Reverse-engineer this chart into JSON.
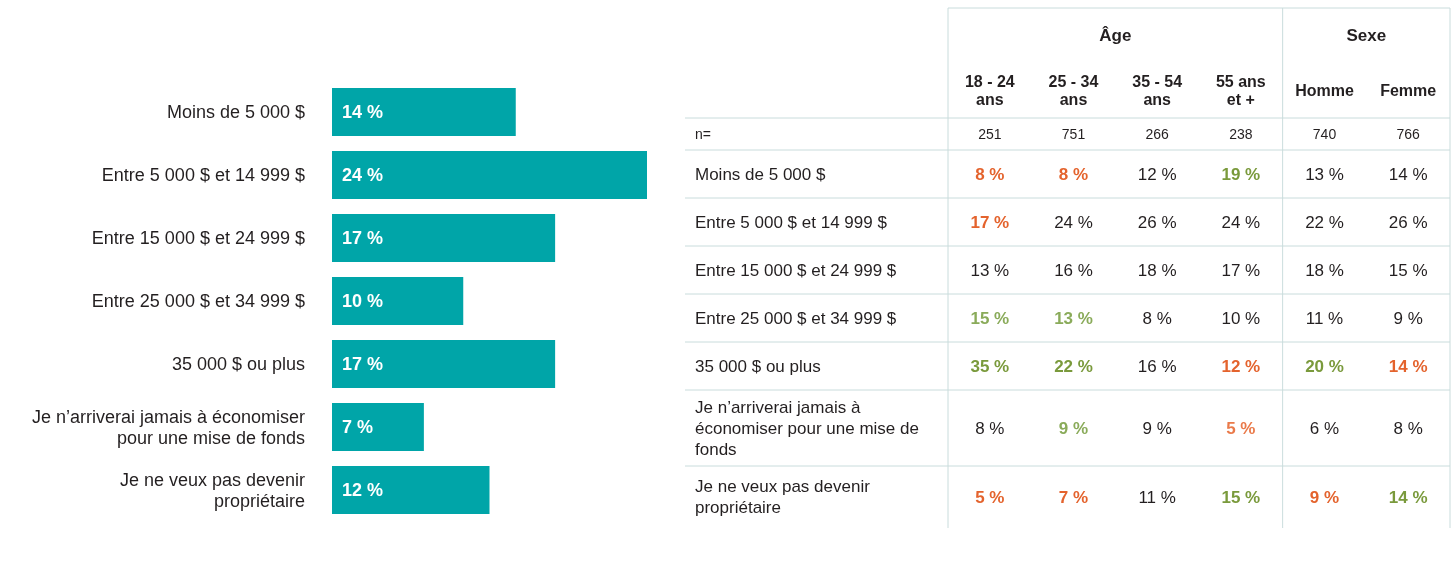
{
  "chart_data": [
    {
      "type": "bar",
      "orientation": "horizontal",
      "categories": [
        "Moins de 5 000  $",
        "Entre 5 000  $ et 14 999  $",
        "Entre 15 000  $ et 24 999  $",
        "Entre 25 000  $ et 34 999  $",
        "35 000  $ ou plus",
        "Je n’arriverai jamais à économiser pour une mise de fonds",
        "Je ne veux pas devenir propriétaire"
      ],
      "values": [
        14,
        24,
        17,
        10,
        17,
        7,
        12
      ],
      "color": "#00a5a8",
      "value_labels": [
        "14 %",
        "24 %",
        "17 %",
        "10 %",
        "17 %",
        "7 %",
        "12 %"
      ]
    },
    {
      "type": "heatmap",
      "grid": true,
      "annotations": [
        "Âge",
        "Sexe"
      ],
      "categories": [
        "18 - 24 ans",
        "25 - 34 ans",
        "35 - 54 ans",
        "55 ans et +",
        "Homme",
        "Femme"
      ],
      "y_categories": [
        "n=",
        "Moins de 5 000  $",
        "Entre 5 000  $ et 14 999  $",
        "Entre 15 000  $ et 24 999  $",
        "Entre 25 000  $ et 34 999  $",
        "35 000  $ ou plus",
        "Je n’arriverai jamais à économiser pour une mise de fonds",
        "Je ne veux pas devenir propriétaire"
      ],
      "cells": [
        [
          251,
          751,
          266,
          238,
          740,
          766
        ],
        [
          8,
          8,
          12,
          19,
          13,
          14
        ],
        [
          17,
          24,
          26,
          24,
          22,
          26
        ],
        [
          13,
          16,
          18,
          17,
          18,
          15
        ],
        [
          15,
          13,
          8,
          10,
          11,
          9
        ],
        [
          35,
          22,
          16,
          12,
          20,
          14
        ],
        [
          8,
          9,
          9,
          5,
          6,
          8
        ],
        [
          5,
          7,
          11,
          15,
          9,
          14
        ]
      ],
      "cell_labels": [
        [
          "251",
          "751",
          "266",
          "238",
          "740",
          "766"
        ],
        [
          "8 %",
          "8 %",
          "12 %",
          "19 %",
          "13 %",
          "14 %"
        ],
        [
          "17 %",
          "24 %",
          "26 %",
          "24 %",
          "22 %",
          "26 %"
        ],
        [
          "13 %",
          "16 %",
          "18 %",
          "17 %",
          "18 %",
          "15 %"
        ],
        [
          "15 %",
          "13 %",
          "8 %",
          "10 %",
          "11 %",
          "9 %"
        ],
        [
          "35 %",
          "22 %",
          "16 %",
          "12 %",
          "20 %",
          "14 %"
        ],
        [
          "8 %",
          "9 %",
          "9 %",
          "5 %",
          "6 %",
          "8 %"
        ],
        [
          "5 %",
          "7 %",
          "11 %",
          "15 %",
          "9 %",
          "14 %"
        ]
      ],
      "colors": [
        [
          "#231f20",
          "#231f20",
          "#231f20",
          "#231f20",
          "#231f20",
          "#231f20"
        ],
        [
          "#e4632d",
          "#e4632d",
          "#231f20",
          "#7a9a3c",
          "#231f20",
          "#231f20"
        ],
        [
          "#e4632d",
          "#231f20",
          "#231f20",
          "#231f20",
          "#231f20",
          "#231f20"
        ],
        [
          "#231f20",
          "#231f20",
          "#231f20",
          "#231f20",
          "#231f20",
          "#231f20"
        ],
        [
          "#8aab5a",
          "#8aab5a",
          "#231f20",
          "#231f20",
          "#231f20",
          "#231f20"
        ],
        [
          "#7a9a3c",
          "#7a9a3c",
          "#231f20",
          "#e4632d",
          "#7a9a3c",
          "#e4632d"
        ],
        [
          "#231f20",
          "#8aab5a",
          "#231f20",
          "#ea7a4a",
          "#231f20",
          "#231f20"
        ],
        [
          "#e4632d",
          "#e4632d",
          "#231f20",
          "#7a9a3c",
          "#e4632d",
          "#7a9a3c"
        ]
      ]
    }
  ]
}
